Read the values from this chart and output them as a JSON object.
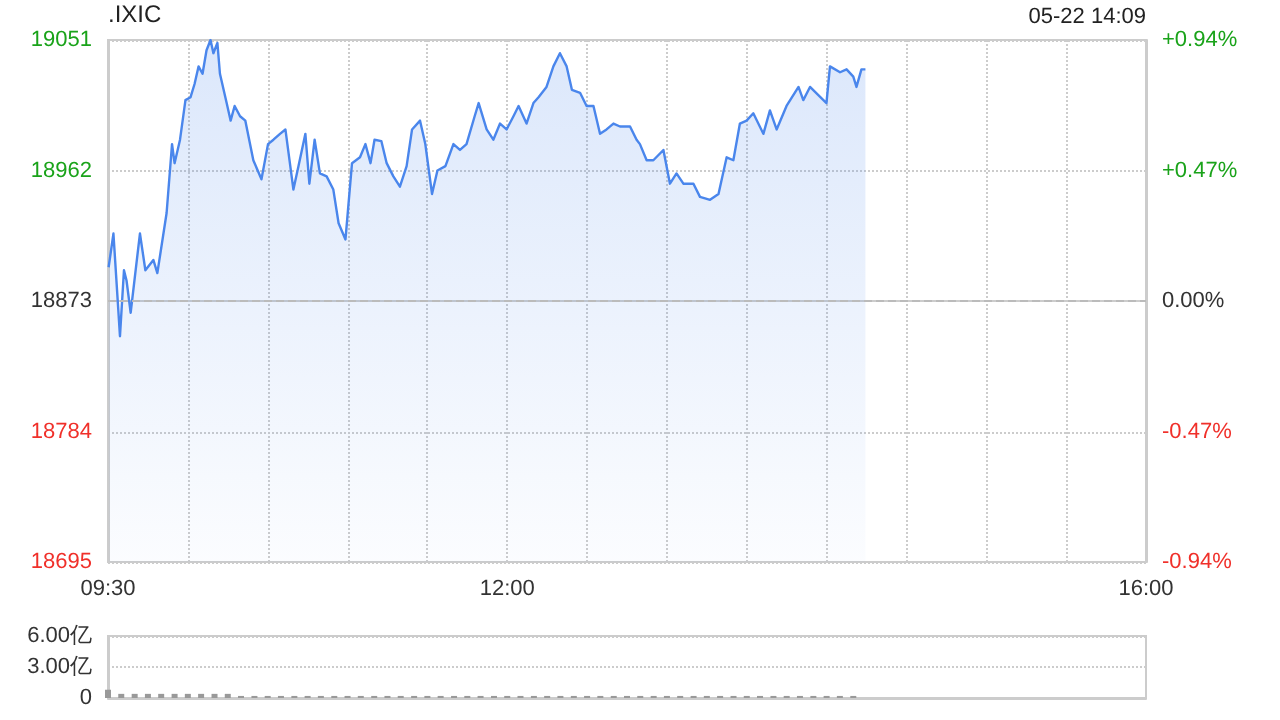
{
  "chart_data": [
    {
      "type": "area",
      "title": ".IXIC",
      "annotations": [
        "05-22 14:09"
      ],
      "grid": true,
      "marker": "none",
      "color": "#4a86ec",
      "x": [
        9.504,
        9.534,
        9.575,
        9.6,
        9.616,
        9.642,
        9.7,
        9.734,
        9.784,
        9.809,
        9.867,
        9.901,
        9.917,
        9.951,
        9.985,
        10.017,
        10.042,
        10.067,
        10.092,
        10.117,
        10.142,
        10.16,
        10.185,
        10.201,
        10.243,
        10.268,
        10.293,
        10.327,
        10.36,
        10.41,
        10.461,
        10.502,
        10.536,
        10.577,
        10.611,
        10.661,
        10.693,
        10.736,
        10.761,
        10.794,
        10.827,
        10.869,
        10.911,
        10.944,
        10.987,
        11.028,
        11.078,
        11.112,
        11.144,
        11.169,
        11.212,
        11.245,
        11.287,
        11.328,
        11.37,
        11.404,
        11.454,
        11.487,
        11.529,
        11.563,
        11.613,
        11.663,
        11.704,
        11.745,
        11.796,
        11.821,
        11.871,
        11.913,
        11.955,
        11.996,
        12.039,
        12.071,
        12.121,
        12.164,
        12.196,
        12.246,
        12.289,
        12.33,
        12.372,
        12.405,
        12.456,
        12.497,
        12.54,
        12.581,
        12.622,
        12.665,
        12.706,
        12.769,
        12.81,
        12.831,
        12.873,
        12.915,
        12.978,
        13.019,
        13.06,
        13.103,
        13.166,
        13.207,
        13.27,
        13.323,
        13.374,
        13.416,
        13.457,
        13.499,
        13.541,
        13.604,
        13.645,
        13.687,
        13.749,
        13.824,
        13.854,
        13.896,
        13.999,
        14.021,
        14.084,
        14.125,
        14.167,
        14.187,
        14.218,
        14.243
      ],
      "values": [
        18896,
        18919,
        18849,
        18894,
        18887,
        18865,
        18919,
        18894,
        18901,
        18892,
        18933,
        18980,
        18967,
        18983,
        19010,
        19012,
        19021,
        19033,
        19028,
        19044,
        19051,
        19042,
        19049,
        19028,
        19008,
        18996,
        19006,
        18999,
        18996,
        18969,
        18956,
        18980,
        18983,
        18987,
        18990,
        18949,
        18965,
        18987,
        18953,
        18983,
        18960,
        18958,
        18949,
        18926,
        18915,
        18967,
        18971,
        18980,
        18967,
        18983,
        18982,
        18967,
        18958,
        18951,
        18965,
        18990,
        18996,
        18980,
        18946,
        18962,
        18965,
        18980,
        18976,
        18980,
        18999,
        19008,
        18990,
        18983,
        18994,
        18990,
        18999,
        19006,
        18994,
        19008,
        19012,
        19019,
        19033,
        19042,
        19033,
        19017,
        19015,
        19006,
        19006,
        18987,
        18990,
        18994,
        18992,
        18992,
        18983,
        18980,
        18969,
        18969,
        18976,
        18953,
        18960,
        18953,
        18953,
        18944,
        18942,
        18946,
        18971,
        18969,
        18994,
        18996,
        19001,
        18987,
        19003,
        18990,
        19006,
        19019,
        19010,
        19019,
        19008,
        19033,
        19029,
        19031,
        19026,
        19019,
        19031,
        19031
      ],
      "xlim": [
        9.5,
        16
      ],
      "xticks": [
        {
          "value": 9.5,
          "label": "09:30"
        },
        {
          "value": 10,
          "label": null
        },
        {
          "value": 10.5,
          "label": null
        },
        {
          "value": 11,
          "label": null
        },
        {
          "value": 11.5,
          "label": null
        },
        {
          "value": 12,
          "label": "12:00"
        },
        {
          "value": 12.5,
          "label": null
        },
        {
          "value": 13,
          "label": null
        },
        {
          "value": 13.5,
          "label": null
        },
        {
          "value": 14,
          "label": null
        },
        {
          "value": 14.5,
          "label": null
        },
        {
          "value": 15,
          "label": null
        },
        {
          "value": 15.5,
          "label": null
        },
        {
          "value": 16,
          "label": "16:00"
        }
      ],
      "ylim": [
        18695,
        19051
      ],
      "yticks": [
        18695,
        18784,
        18873,
        18962,
        19051
      ],
      "y2lim": [
        -0.94,
        0.94
      ],
      "y2ticks": [
        {
          "value": -0.94,
          "label": "-0.94%"
        },
        {
          "value": -0.47,
          "label": "-0.47%"
        },
        {
          "value": 0,
          "label": "0.00%"
        },
        {
          "value": 0.47,
          "label": "+0.47%"
        },
        {
          "value": 0.94,
          "label": "+0.94%"
        }
      ],
      "ref_lines": [
        {
          "axis": "y",
          "value": 18873,
          "line_style": "dashed",
          "color": "#bbbbbb"
        }
      ]
    },
    {
      "type": "bar",
      "tick_labels": "y",
      "grid": "y",
      "color": "#999999",
      "x": [
        9.5,
        9.583,
        9.667,
        9.75,
        9.833,
        9.917,
        10,
        10.083,
        10.167,
        10.25,
        10.333,
        10.417,
        10.5,
        10.583,
        10.667,
        10.75,
        10.833,
        10.917,
        11,
        11.083,
        11.167,
        11.25,
        11.333,
        11.417,
        11.5,
        11.583,
        11.667,
        11.75,
        11.833,
        11.917,
        12,
        12.083,
        12.167,
        12.25,
        12.333,
        12.417,
        12.5,
        12.583,
        12.667,
        12.75,
        12.833,
        12.917,
        13,
        13.083,
        13.167,
        13.25,
        13.333,
        13.417,
        13.5,
        13.583,
        13.667,
        13.75,
        13.833,
        13.917,
        14,
        14.083,
        14.167
      ],
      "values": [
        0.8,
        0.4,
        0.4,
        0.4,
        0.4,
        0.4,
        0.4,
        0.4,
        0.4,
        0.4,
        0.2,
        0.2,
        0.2,
        0.2,
        0.2,
        0.2,
        0.2,
        0.2,
        0.2,
        0.2,
        0.2,
        0.2,
        0.2,
        0.2,
        0.2,
        0.2,
        0.2,
        0.2,
        0.2,
        0.2,
        0.2,
        0.2,
        0.2,
        0.2,
        0.2,
        0.2,
        0.2,
        0.2,
        0.2,
        0.2,
        0.2,
        0.2,
        0.2,
        0.2,
        0.2,
        0.2,
        0.2,
        0.2,
        0.2,
        0.2,
        0.2,
        0.2,
        0.2,
        0.2,
        0.2,
        0.2,
        0.2
      ],
      "xlim": [
        9.5,
        16
      ],
      "ylim": [
        0,
        6
      ],
      "yticks": [
        0,
        {
          "value": 3,
          "label": "3.00亿"
        },
        {
          "value": 6,
          "label": "6.00亿"
        }
      ]
    }
  ]
}
